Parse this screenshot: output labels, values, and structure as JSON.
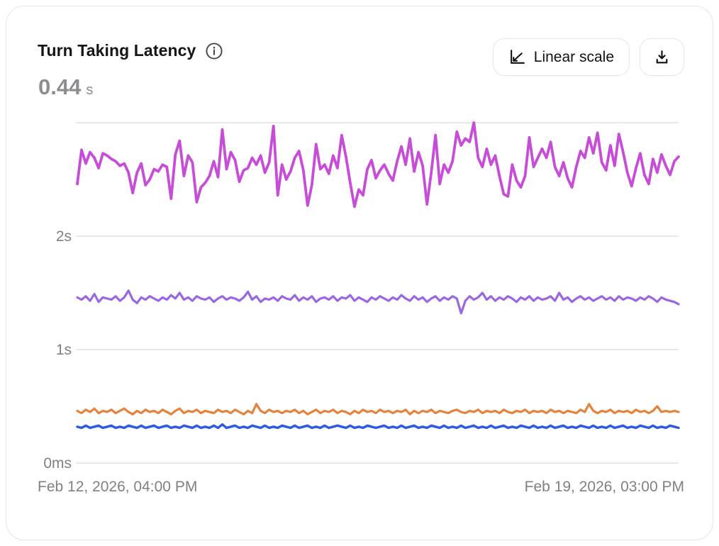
{
  "card": {
    "title": "Turn Taking Latency",
    "metric_value": "0.44",
    "metric_unit": "s",
    "buttons": {
      "scale_label": "Linear scale"
    },
    "icons": {
      "info": "info-icon",
      "scale": "linear-scale-icon",
      "download": "download-icon"
    }
  },
  "axis": {
    "y_ticks": [
      {
        "label": "0ms",
        "value": 0
      },
      {
        "label": "1s",
        "value": 1
      },
      {
        "label": "2s",
        "value": 2
      },
      {
        "label": "",
        "value": 3
      }
    ],
    "x_start_label": "Feb 12, 2026, 04:00 PM",
    "x_end_label": "Feb 19, 2026, 03:00 PM"
  },
  "chart_data": {
    "type": "line",
    "title": "Turn Taking Latency",
    "unit": "seconds",
    "ylim": [
      0,
      3.2
    ],
    "grid": true,
    "legend": false,
    "x_range": [
      "Feb 12, 2026, 04:00 PM",
      "Feb 19, 2026, 03:00 PM"
    ],
    "series": [
      {
        "name": "series-magenta",
        "color": "#C74DD8",
        "width": 3.8,
        "values": [
          2.46,
          2.76,
          2.64,
          2.74,
          2.69,
          2.6,
          2.73,
          2.71,
          2.68,
          2.66,
          2.62,
          2.64,
          2.56,
          2.38,
          2.56,
          2.64,
          2.45,
          2.5,
          2.59,
          2.57,
          2.63,
          2.61,
          2.33,
          2.72,
          2.84,
          2.53,
          2.71,
          2.65,
          2.3,
          2.43,
          2.47,
          2.53,
          2.66,
          2.52,
          2.94,
          2.59,
          2.74,
          2.67,
          2.48,
          2.58,
          2.6,
          2.69,
          2.63,
          2.71,
          2.56,
          2.65,
          2.97,
          2.36,
          2.63,
          2.5,
          2.57,
          2.69,
          2.75,
          2.58,
          2.27,
          2.45,
          2.81,
          2.59,
          2.63,
          2.55,
          2.71,
          2.6,
          2.89,
          2.7,
          2.47,
          2.26,
          2.41,
          2.36,
          2.59,
          2.67,
          2.51,
          2.58,
          2.63,
          2.55,
          2.49,
          2.66,
          2.79,
          2.63,
          2.86,
          2.57,
          2.74,
          2.62,
          2.28,
          2.56,
          2.89,
          2.46,
          2.63,
          2.56,
          2.66,
          2.92,
          2.8,
          2.86,
          2.83,
          3.0,
          2.69,
          2.61,
          2.77,
          2.63,
          2.71,
          2.53,
          2.37,
          2.35,
          2.63,
          2.49,
          2.43,
          2.53,
          2.87,
          2.61,
          2.69,
          2.77,
          2.69,
          2.83,
          2.61,
          2.53,
          2.65,
          2.51,
          2.43,
          2.61,
          2.75,
          2.69,
          2.87,
          2.73,
          2.91,
          2.65,
          2.58,
          2.8,
          2.62,
          2.9,
          2.74,
          2.56,
          2.44,
          2.6,
          2.73,
          2.54,
          2.46,
          2.68,
          2.56,
          2.72,
          2.62,
          2.54,
          2.66,
          2.7
        ]
      },
      {
        "name": "series-purple",
        "color": "#9A67E2",
        "width": 3.2,
        "values": [
          1.46,
          1.44,
          1.47,
          1.43,
          1.49,
          1.42,
          1.46,
          1.45,
          1.44,
          1.47,
          1.43,
          1.46,
          1.52,
          1.44,
          1.41,
          1.46,
          1.44,
          1.47,
          1.45,
          1.43,
          1.46,
          1.44,
          1.48,
          1.45,
          1.5,
          1.44,
          1.46,
          1.43,
          1.47,
          1.45,
          1.44,
          1.46,
          1.42,
          1.45,
          1.47,
          1.44,
          1.46,
          1.45,
          1.43,
          1.46,
          1.51,
          1.44,
          1.47,
          1.42,
          1.45,
          1.44,
          1.46,
          1.43,
          1.47,
          1.45,
          1.44,
          1.48,
          1.43,
          1.46,
          1.44,
          1.47,
          1.42,
          1.45,
          1.46,
          1.44,
          1.47,
          1.43,
          1.46,
          1.45,
          1.48,
          1.43,
          1.46,
          1.44,
          1.42,
          1.46,
          1.44,
          1.47,
          1.45,
          1.43,
          1.46,
          1.44,
          1.48,
          1.45,
          1.43,
          1.47,
          1.44,
          1.46,
          1.42,
          1.45,
          1.47,
          1.43,
          1.46,
          1.44,
          1.47,
          1.45,
          1.32,
          1.43,
          1.47,
          1.44,
          1.46,
          1.5,
          1.44,
          1.47,
          1.43,
          1.46,
          1.44,
          1.47,
          1.45,
          1.42,
          1.46,
          1.44,
          1.47,
          1.43,
          1.46,
          1.44,
          1.45,
          1.47,
          1.43,
          1.5,
          1.44,
          1.46,
          1.42,
          1.45,
          1.47,
          1.44,
          1.46,
          1.43,
          1.45,
          1.47,
          1.44,
          1.46,
          1.43,
          1.47,
          1.44,
          1.46,
          1.45,
          1.43,
          1.46,
          1.44,
          1.47,
          1.45,
          1.42,
          1.46,
          1.44,
          1.43,
          1.42,
          1.4
        ]
      },
      {
        "name": "series-orange",
        "color": "#E5823C",
        "width": 3.2,
        "values": [
          0.46,
          0.44,
          0.47,
          0.45,
          0.48,
          0.44,
          0.46,
          0.45,
          0.47,
          0.44,
          0.46,
          0.48,
          0.45,
          0.43,
          0.46,
          0.44,
          0.47,
          0.45,
          0.46,
          0.44,
          0.47,
          0.45,
          0.43,
          0.46,
          0.48,
          0.44,
          0.46,
          0.45,
          0.47,
          0.44,
          0.46,
          0.45,
          0.44,
          0.47,
          0.45,
          0.46,
          0.44,
          0.47,
          0.45,
          0.43,
          0.46,
          0.44,
          0.52,
          0.46,
          0.44,
          0.47,
          0.45,
          0.46,
          0.44,
          0.46,
          0.45,
          0.47,
          0.44,
          0.46,
          0.43,
          0.45,
          0.47,
          0.44,
          0.46,
          0.45,
          0.47,
          0.44,
          0.46,
          0.45,
          0.43,
          0.46,
          0.44,
          0.47,
          0.45,
          0.46,
          0.44,
          0.47,
          0.45,
          0.46,
          0.44,
          0.46,
          0.45,
          0.47,
          0.43,
          0.46,
          0.44,
          0.46,
          0.45,
          0.47,
          0.44,
          0.46,
          0.45,
          0.44,
          0.46,
          0.47,
          0.45,
          0.44,
          0.46,
          0.45,
          0.47,
          0.44,
          0.46,
          0.45,
          0.46,
          0.44,
          0.47,
          0.45,
          0.44,
          0.46,
          0.45,
          0.47,
          0.44,
          0.46,
          0.45,
          0.46,
          0.44,
          0.47,
          0.45,
          0.46,
          0.44,
          0.46,
          0.45,
          0.44,
          0.47,
          0.45,
          0.52,
          0.46,
          0.44,
          0.46,
          0.45,
          0.47,
          0.44,
          0.46,
          0.45,
          0.46,
          0.44,
          0.47,
          0.45,
          0.46,
          0.44,
          0.46,
          0.5,
          0.45,
          0.46,
          0.45,
          0.46,
          0.45
        ]
      },
      {
        "name": "series-blue",
        "color": "#2C58E2",
        "width": 3.4,
        "values": [
          0.32,
          0.31,
          0.33,
          0.31,
          0.32,
          0.33,
          0.31,
          0.32,
          0.33,
          0.31,
          0.32,
          0.31,
          0.33,
          0.32,
          0.31,
          0.33,
          0.31,
          0.32,
          0.33,
          0.31,
          0.32,
          0.33,
          0.31,
          0.32,
          0.31,
          0.33,
          0.32,
          0.31,
          0.33,
          0.31,
          0.32,
          0.31,
          0.33,
          0.31,
          0.34,
          0.31,
          0.32,
          0.33,
          0.31,
          0.32,
          0.31,
          0.33,
          0.32,
          0.31,
          0.33,
          0.31,
          0.32,
          0.31,
          0.33,
          0.32,
          0.31,
          0.33,
          0.31,
          0.32,
          0.33,
          0.31,
          0.32,
          0.31,
          0.33,
          0.31,
          0.32,
          0.33,
          0.32,
          0.31,
          0.33,
          0.31,
          0.32,
          0.31,
          0.33,
          0.32,
          0.31,
          0.32,
          0.33,
          0.31,
          0.32,
          0.31,
          0.33,
          0.31,
          0.32,
          0.33,
          0.31,
          0.32,
          0.31,
          0.33,
          0.32,
          0.31,
          0.33,
          0.31,
          0.32,
          0.31,
          0.33,
          0.31,
          0.32,
          0.33,
          0.31,
          0.32,
          0.31,
          0.33,
          0.31,
          0.32,
          0.33,
          0.31,
          0.32,
          0.31,
          0.33,
          0.32,
          0.31,
          0.33,
          0.31,
          0.32,
          0.31,
          0.33,
          0.31,
          0.32,
          0.33,
          0.31,
          0.32,
          0.31,
          0.33,
          0.32,
          0.31,
          0.33,
          0.31,
          0.32,
          0.31,
          0.33,
          0.31,
          0.32,
          0.33,
          0.31,
          0.32,
          0.31,
          0.33,
          0.32,
          0.31,
          0.33,
          0.31,
          0.32,
          0.31,
          0.33,
          0.32,
          0.31
        ]
      }
    ]
  }
}
